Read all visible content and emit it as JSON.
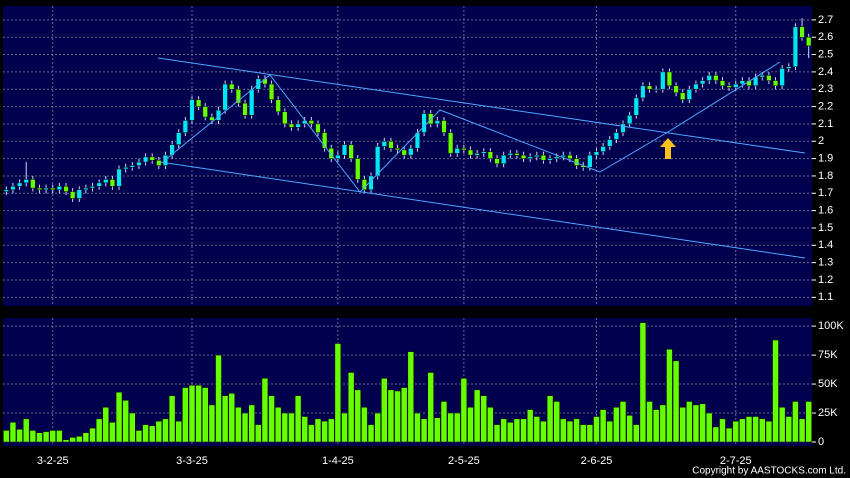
{
  "chart_data": {
    "type": "candlestick",
    "categories": [
      null,
      null,
      null,
      null,
      null,
      null,
      null,
      "3-2-25",
      null,
      null,
      null,
      null,
      null,
      null,
      null,
      null,
      null,
      null,
      null,
      null,
      null,
      null,
      null,
      null,
      null,
      null,
      null,
      null,
      "3-3-25",
      null,
      null,
      null,
      null,
      null,
      null,
      null,
      null,
      null,
      null,
      null,
      null,
      null,
      null,
      null,
      null,
      null,
      null,
      null,
      null,
      null,
      "1-4-25",
      null,
      null,
      null,
      null,
      null,
      null,
      null,
      null,
      null,
      null,
      null,
      null,
      null,
      null,
      null,
      null,
      null,
      null,
      "2-5-25",
      null,
      null,
      null,
      null,
      null,
      null,
      null,
      null,
      null,
      null,
      null,
      null,
      null,
      null,
      null,
      null,
      null,
      null,
      null,
      "2-6-25",
      null,
      null,
      null,
      null,
      null,
      null,
      null,
      null,
      null,
      null,
      null,
      null,
      null,
      null,
      null,
      null,
      null,
      null,
      null,
      null,
      "2-7-25",
      null,
      null,
      null,
      null,
      null,
      null,
      null,
      null,
      null,
      null,
      null
    ],
    "open": [
      1.71,
      1.72,
      1.74,
      1.76,
      1.78,
      1.73,
      1.72,
      1.73,
      1.72,
      1.74,
      1.71,
      1.67,
      1.72,
      1.73,
      1.74,
      1.76,
      1.78,
      1.74,
      1.84,
      1.85,
      1.86,
      1.88,
      1.91,
      1.89,
      1.86,
      1.92,
      1.98,
      2.05,
      2.12,
      2.24,
      2.2,
      2.14,
      2.12,
      2.18,
      2.33,
      2.3,
      2.22,
      2.15,
      2.3,
      2.36,
      2.33,
      2.24,
      2.17,
      2.1,
      2.08,
      2.1,
      2.12,
      2.1,
      2.05,
      1.96,
      1.9,
      1.92,
      1.98,
      1.9,
      1.78,
      1.72,
      1.8,
      1.97,
      2.0,
      1.96,
      1.95,
      1.92,
      1.96,
      2.05,
      2.16,
      2.1,
      2.12,
      2.05,
      1.93,
      1.96,
      1.95,
      1.92,
      1.93,
      1.94,
      1.9,
      1.87,
      1.92,
      1.93,
      1.92,
      1.9,
      1.91,
      1.92,
      1.89,
      1.9,
      1.91,
      1.92,
      1.9,
      1.86,
      1.85,
      1.92,
      1.94,
      1.97,
      2.01,
      2.05,
      2.1,
      2.15,
      2.25,
      2.32,
      2.3,
      2.3,
      2.4,
      2.32,
      2.28,
      2.24,
      2.3,
      2.33,
      2.35,
      2.38,
      2.35,
      2.32,
      2.31,
      2.33,
      2.35,
      2.32,
      2.37,
      2.38,
      2.35,
      2.32,
      2.42,
      2.43,
      2.66,
      2.6
    ],
    "high": [
      1.74,
      1.76,
      1.78,
      1.88,
      1.8,
      1.75,
      1.75,
      1.75,
      1.76,
      1.76,
      1.73,
      1.74,
      1.75,
      1.76,
      1.78,
      1.8,
      1.8,
      1.86,
      1.87,
      1.88,
      1.9,
      1.93,
      1.93,
      1.91,
      1.94,
      2.0,
      2.07,
      2.14,
      2.26,
      2.26,
      2.22,
      2.16,
      2.2,
      2.35,
      2.35,
      2.32,
      2.24,
      2.32,
      2.38,
      2.38,
      2.35,
      2.26,
      2.19,
      2.12,
      2.12,
      2.14,
      2.14,
      2.12,
      2.07,
      1.98,
      1.94,
      2.0,
      2.0,
      1.92,
      1.8,
      1.82,
      1.99,
      2.02,
      2.02,
      1.98,
      1.97,
      1.98,
      2.07,
      2.18,
      2.18,
      2.14,
      2.14,
      2.07,
      1.98,
      1.98,
      1.97,
      1.95,
      1.96,
      1.96,
      1.92,
      1.94,
      1.95,
      1.95,
      1.94,
      1.93,
      1.94,
      1.94,
      1.92,
      1.93,
      1.94,
      1.94,
      1.92,
      1.88,
      1.94,
      1.96,
      1.99,
      2.03,
      2.07,
      2.12,
      2.17,
      2.27,
      2.34,
      2.34,
      2.32,
      2.42,
      2.42,
      2.34,
      2.3,
      2.32,
      2.35,
      2.37,
      2.4,
      2.4,
      2.37,
      2.34,
      2.35,
      2.37,
      2.37,
      2.39,
      2.4,
      2.4,
      2.37,
      2.44,
      2.45,
      2.68,
      2.71,
      2.62
    ],
    "low": [
      1.69,
      1.7,
      1.72,
      1.74,
      1.71,
      1.7,
      1.7,
      1.7,
      1.7,
      1.69,
      1.65,
      1.65,
      1.7,
      1.71,
      1.72,
      1.74,
      1.72,
      1.72,
      1.82,
      1.83,
      1.84,
      1.86,
      1.87,
      1.84,
      1.84,
      1.9,
      1.96,
      2.03,
      2.1,
      2.18,
      2.12,
      2.1,
      2.1,
      2.16,
      2.28,
      2.2,
      2.13,
      2.13,
      2.28,
      2.31,
      2.22,
      2.15,
      2.08,
      2.06,
      2.06,
      2.08,
      2.08,
      2.03,
      1.94,
      1.88,
      1.88,
      1.9,
      1.88,
      1.76,
      1.7,
      1.7,
      1.78,
      1.95,
      1.94,
      1.93,
      1.9,
      1.9,
      1.94,
      2.03,
      2.08,
      2.08,
      2.03,
      1.91,
      1.91,
      1.93,
      1.9,
      1.9,
      1.91,
      1.88,
      1.85,
      1.85,
      1.9,
      1.9,
      1.88,
      1.88,
      1.89,
      1.87,
      1.87,
      1.88,
      1.89,
      1.88,
      1.84,
      1.83,
      1.83,
      1.9,
      1.92,
      1.95,
      1.99,
      2.03,
      2.08,
      2.13,
      2.23,
      2.28,
      2.28,
      2.28,
      2.3,
      2.26,
      2.22,
      2.22,
      2.28,
      2.31,
      2.33,
      2.33,
      2.3,
      2.29,
      2.29,
      2.31,
      2.3,
      2.3,
      2.35,
      2.33,
      2.3,
      2.3,
      2.4,
      2.41,
      2.58,
      2.48
    ],
    "close": [
      1.72,
      1.74,
      1.76,
      1.78,
      1.73,
      1.72,
      1.73,
      1.72,
      1.74,
      1.71,
      1.67,
      1.72,
      1.73,
      1.74,
      1.76,
      1.78,
      1.74,
      1.84,
      1.85,
      1.86,
      1.88,
      1.91,
      1.89,
      1.86,
      1.92,
      1.98,
      2.05,
      2.12,
      2.24,
      2.2,
      2.14,
      2.12,
      2.18,
      2.33,
      2.3,
      2.22,
      2.15,
      2.3,
      2.36,
      2.33,
      2.24,
      2.17,
      2.1,
      2.08,
      2.1,
      2.12,
      2.1,
      2.05,
      1.96,
      1.9,
      1.92,
      1.98,
      1.9,
      1.78,
      1.72,
      1.8,
      1.97,
      2.0,
      1.96,
      1.95,
      1.92,
      1.96,
      2.05,
      2.16,
      2.1,
      2.12,
      2.05,
      1.93,
      1.96,
      1.95,
      1.92,
      1.93,
      1.94,
      1.9,
      1.87,
      1.92,
      1.93,
      1.92,
      1.9,
      1.91,
      1.92,
      1.89,
      1.9,
      1.91,
      1.92,
      1.9,
      1.86,
      1.85,
      1.92,
      1.94,
      1.97,
      2.01,
      2.05,
      2.1,
      2.15,
      2.25,
      2.32,
      2.3,
      2.3,
      2.4,
      2.32,
      2.28,
      2.24,
      2.3,
      2.33,
      2.35,
      2.38,
      2.35,
      2.32,
      2.31,
      2.33,
      2.35,
      2.32,
      2.37,
      2.38,
      2.35,
      2.32,
      2.42,
      2.43,
      2.66,
      2.6,
      2.55
    ],
    "volume": [
      10000,
      17000,
      11000,
      20000,
      10000,
      8000,
      9000,
      10000,
      10000,
      2000,
      4000,
      5000,
      8000,
      12000,
      20000,
      30000,
      17000,
      43000,
      36000,
      25000,
      10000,
      15000,
      14000,
      18000,
      20000,
      40000,
      18000,
      47000,
      49000,
      49000,
      47000,
      32000,
      75000,
      40000,
      42000,
      30000,
      25000,
      32000,
      15000,
      55000,
      40000,
      30000,
      25000,
      25000,
      40000,
      22000,
      15000,
      20000,
      18000,
      20000,
      85000,
      25000,
      60000,
      45000,
      30000,
      15000,
      25000,
      55000,
      45000,
      44000,
      47000,
      78000,
      25000,
      20000,
      60000,
      21000,
      35000,
      25000,
      25000,
      55000,
      30000,
      45000,
      40000,
      30000,
      15000,
      20000,
      17000,
      20000,
      20000,
      28000,
      22000,
      18000,
      40000,
      35000,
      20000,
      18000,
      20000,
      15000,
      15000,
      22000,
      28000,
      18000,
      30000,
      35000,
      23000,
      15000,
      103000,
      35000,
      28000,
      32000,
      80000,
      70000,
      30000,
      35000,
      32000,
      33000,
      25000,
      13000,
      20000,
      12000,
      18000,
      20000,
      22000,
      22000,
      20000,
      18000,
      88000,
      30000,
      22000,
      35000,
      20000,
      35000
    ],
    "up_color": "#00e5ff",
    "down_color": "#66ff00",
    "volume_color": "#66ff00",
    "ylim": [
      1.05,
      2.78
    ],
    "yticks": [
      1.1,
      1.2,
      1.3,
      1.4,
      1.5,
      1.6,
      1.7,
      1.8,
      1.9,
      2,
      2.1,
      2.2,
      2.3,
      2.4,
      2.5,
      2.6,
      2.7
    ],
    "volume_ylim": [
      0,
      107000
    ],
    "volume_yticks": [
      0,
      {
        "value": 25000,
        "label": "25K"
      },
      {
        "value": 50000,
        "label": "50K"
      },
      {
        "value": 75000,
        "label": "75K"
      },
      {
        "value": 100000,
        "label": "100K"
      }
    ],
    "grid": true,
    "copyright": "Copyright by AASTOCKS.com Ltd."
  }
}
